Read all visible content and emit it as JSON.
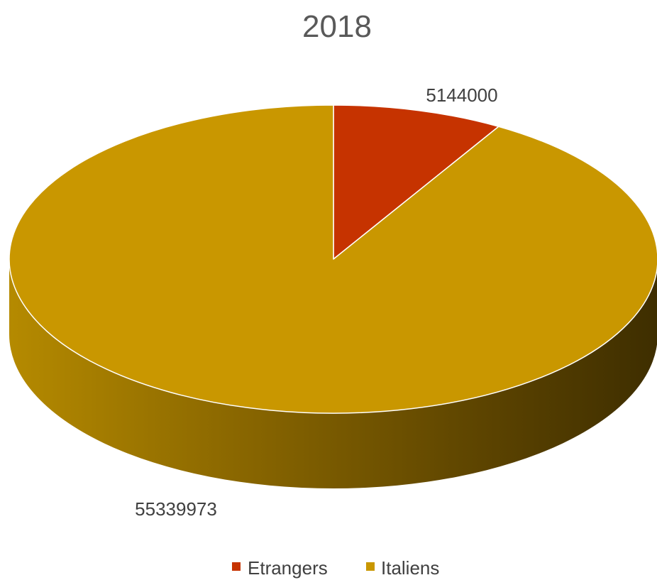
{
  "chart_data": {
    "type": "pie",
    "title": "2018",
    "style": "3d",
    "slices": [
      {
        "label": "Etrangers",
        "value": 5144000,
        "color": "#C63300"
      },
      {
        "label": "Italiens",
        "value": 55339973,
        "color": "#C99700"
      }
    ],
    "data_labels": [
      "5144000",
      "55339973"
    ],
    "legend": {
      "position": "bottom",
      "entries": [
        "Etrangers",
        "Italiens"
      ]
    }
  }
}
